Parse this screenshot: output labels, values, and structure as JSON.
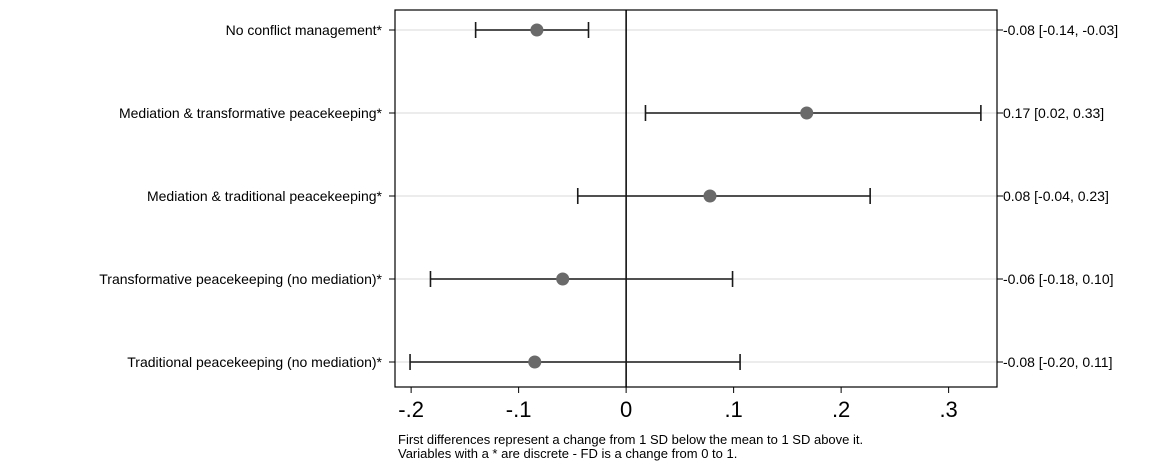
{
  "chart_data": {
    "type": "scatter",
    "subtype": "coefficient-plot-with-confidence-intervals",
    "xlim": [
      -0.215,
      0.345
    ],
    "xticks": [
      -0.2,
      -0.1,
      0,
      0.1,
      0.2,
      0.3
    ],
    "xtick_labels": [
      "-.2",
      "-.1",
      "0",
      ".1",
      ".2",
      ".3"
    ],
    "reference_line": 0,
    "grid": "horizontal",
    "rows": [
      {
        "label": "No conflict management*",
        "estimate": -0.083,
        "low": -0.14,
        "high": -0.035,
        "annotation": "-0.08 [-0.14, -0.03]"
      },
      {
        "label": "Mediation & transformative peacekeeping*",
        "estimate": 0.168,
        "low": 0.018,
        "high": 0.33,
        "annotation": "0.17 [0.02, 0.33]"
      },
      {
        "label": "Mediation & traditional peacekeeping*",
        "estimate": 0.078,
        "low": -0.045,
        "high": 0.227,
        "annotation": "0.08 [-0.04, 0.23]"
      },
      {
        "label": "Transformative peacekeeping (no mediation)*",
        "estimate": -0.059,
        "low": -0.182,
        "high": 0.099,
        "annotation": "-0.06 [-0.18, 0.10]"
      },
      {
        "label": "Traditional peacekeeping (no mediation)*",
        "estimate": -0.085,
        "low": -0.201,
        "high": 0.106,
        "annotation": "-0.08 [-0.20, 0.11]"
      }
    ],
    "colors": {
      "marker": "#6a6a6a",
      "ci": "#1a1a1a",
      "grid": "#e6e6e6",
      "frame": "#000000"
    }
  },
  "notes": [
    "First differences represent a change from 1 SD below the mean to 1 SD above it.",
    "Variables with a * are discrete - FD is a change from 0 to 1."
  ]
}
